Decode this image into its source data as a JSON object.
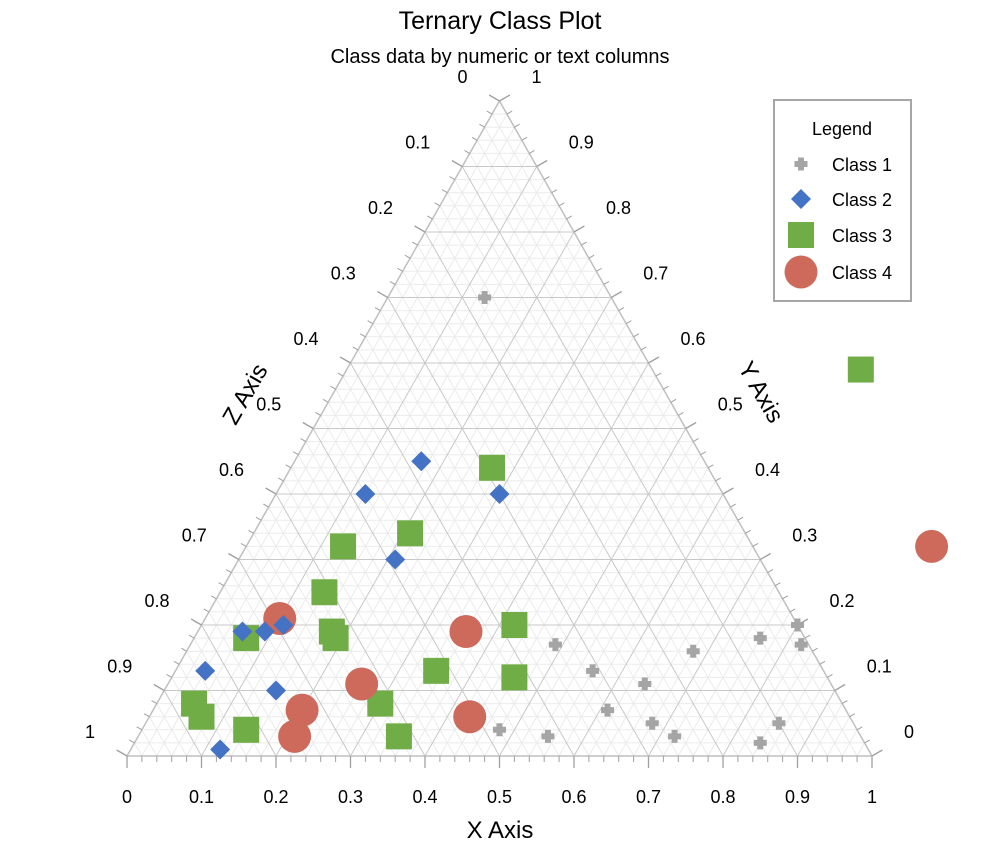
{
  "chart_data": {
    "type": "scatter",
    "subtype": "ternary",
    "title": "Ternary Class Plot",
    "subtitle": "Class data by numeric or text columns",
    "axes": {
      "x": {
        "label": "X Axis",
        "range": [
          0,
          1
        ],
        "ticks": [
          "0",
          "0.1",
          "0.2",
          "0.3",
          "0.4",
          "0.5",
          "0.6",
          "0.7",
          "0.8",
          "0.9",
          "1"
        ]
      },
      "y": {
        "label": "Y Axis",
        "range": [
          0,
          1
        ],
        "ticks": [
          "0",
          "0.1",
          "0.2",
          "0.3",
          "0.4",
          "0.5",
          "0.6",
          "0.7",
          "0.8",
          "0.9",
          "1"
        ]
      },
      "z": {
        "label": "Z Axis",
        "range": [
          0,
          1
        ],
        "ticks": [
          "0",
          "0.1",
          "0.2",
          "0.3",
          "0.4",
          "0.5",
          "0.6",
          "0.7",
          "0.8",
          "0.9",
          "1"
        ]
      }
    },
    "grid": true,
    "legend": {
      "title": "Legend",
      "position": "top-right"
    },
    "series": [
      {
        "name": "Class 1",
        "marker": "plus",
        "color": "#a5a5a5",
        "points": [
          {
            "x": 0.49,
            "y": 0.17
          },
          {
            "x": 0.56,
            "y": 0.13
          },
          {
            "x": 0.48,
            "y": 0.04
          },
          {
            "x": 0.55,
            "y": 0.03
          },
          {
            "x": 0.61,
            "y": 0.07
          },
          {
            "x": 0.64,
            "y": 0.11
          },
          {
            "x": 0.68,
            "y": 0.16
          },
          {
            "x": 0.68,
            "y": 0.05
          },
          {
            "x": 0.72,
            "y": 0.03
          },
          {
            "x": 0.76,
            "y": 0.18
          },
          {
            "x": 0.8,
            "y": 0.2
          },
          {
            "x": 0.82,
            "y": 0.17
          },
          {
            "x": 0.84,
            "y": 0.02
          },
          {
            "x": 0.85,
            "y": 0.05
          },
          {
            "x": 0.13,
            "y": 0.7
          }
        ]
      },
      {
        "name": "Class 2",
        "marker": "diamond",
        "color": "#4472c4",
        "points": [
          {
            "x": 0.17,
            "y": 0.45
          },
          {
            "x": 0.12,
            "y": 0.4
          },
          {
            "x": 0.3,
            "y": 0.4
          },
          {
            "x": 0.21,
            "y": 0.3
          },
          {
            "x": 0.06,
            "y": 0.19
          },
          {
            "x": 0.09,
            "y": 0.19
          },
          {
            "x": 0.11,
            "y": 0.2
          },
          {
            "x": 0.15,
            "y": 0.1
          },
          {
            "x": 0.04,
            "y": 0.13
          },
          {
            "x": 0.12,
            "y": 0.01
          }
        ]
      },
      {
        "name": "Class 3",
        "marker": "square",
        "color": "#70ad47",
        "points": [
          {
            "x": 0.69,
            "y": 0.59
          },
          {
            "x": 0.27,
            "y": 0.44
          },
          {
            "x": 0.21,
            "y": 0.34
          },
          {
            "x": 0.13,
            "y": 0.32
          },
          {
            "x": 0.14,
            "y": 0.25
          },
          {
            "x": 0.18,
            "y": 0.19
          },
          {
            "x": 0.19,
            "y": 0.18
          },
          {
            "x": 0.07,
            "y": 0.18
          },
          {
            "x": 0.42,
            "y": 0.2
          },
          {
            "x": 0.35,
            "y": 0.13
          },
          {
            "x": 0.46,
            "y": 0.12
          },
          {
            "x": 0.3,
            "y": 0.08
          },
          {
            "x": 0.05,
            "y": 0.08
          },
          {
            "x": 0.07,
            "y": 0.06
          },
          {
            "x": 0.14,
            "y": 0.04
          },
          {
            "x": 0.35,
            "y": 0.03
          }
        ]
      },
      {
        "name": "Class 4",
        "marker": "circle",
        "color": "#cd6a5c",
        "points": [
          {
            "x": 0.92,
            "y": 0.32
          },
          {
            "x": 0.36,
            "y": 0.19
          },
          {
            "x": 0.1,
            "y": 0.21
          },
          {
            "x": 0.26,
            "y": 0.11
          },
          {
            "x": 0.43,
            "y": 0.06
          },
          {
            "x": 0.2,
            "y": 0.07
          },
          {
            "x": 0.21,
            "y": 0.03
          }
        ]
      }
    ]
  }
}
